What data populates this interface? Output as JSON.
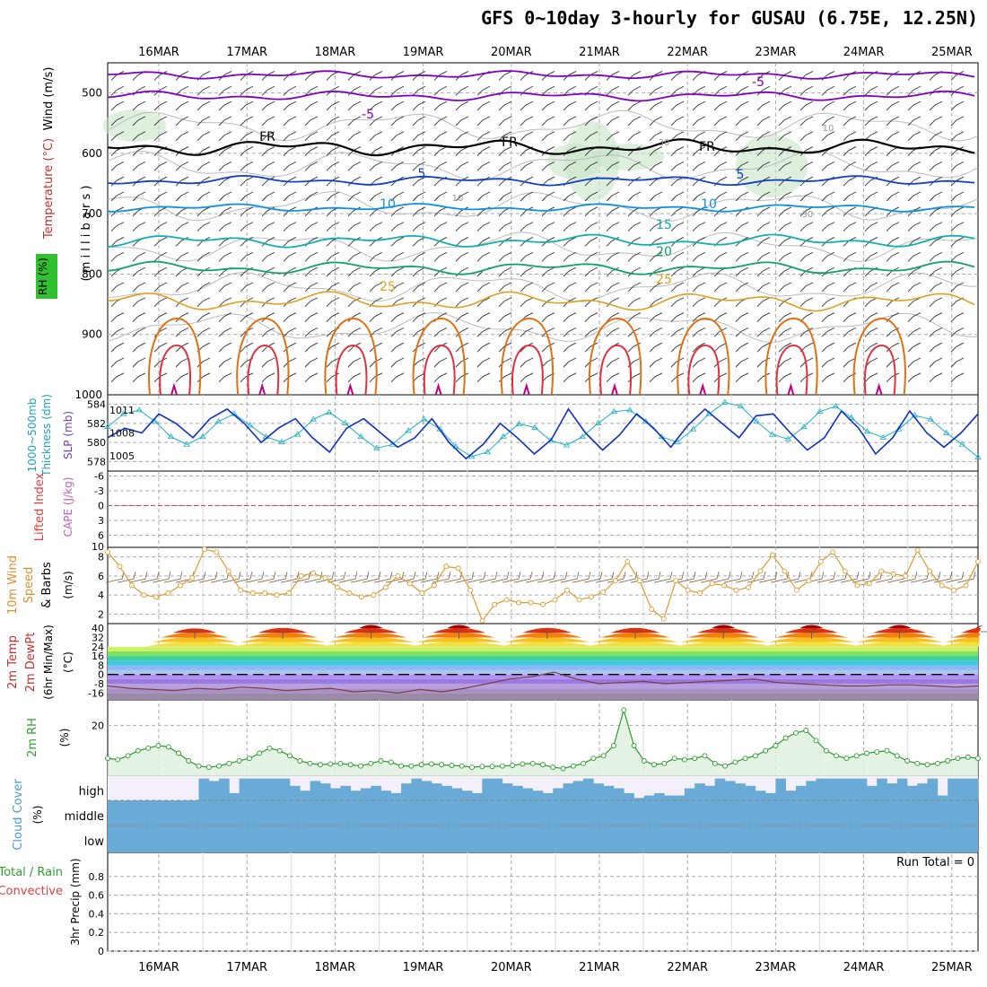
{
  "title": "GFS 0~10day 3-hourly for GUSAU (6.75E, 12.25N)",
  "dates": [
    "16MAR",
    "17MAR",
    "18MAR",
    "19MAR",
    "20MAR",
    "21MAR",
    "22MAR",
    "23MAR",
    "24MAR",
    "25MAR"
  ],
  "colors": {
    "t_minus5": "#8000c0",
    "t_fr": "#000000",
    "t_5": "#1040c8",
    "t_10": "#1090e0",
    "t_15": "#10b0b0",
    "t_20": "#10a070",
    "t_25": "#e0a020",
    "t_30": "#e07010",
    "t_35": "#e03040",
    "t_40": "#c00080",
    "rh": "#c8e4c8",
    "thick": "#1030c0",
    "slp": "#20b0c0",
    "wind10": "#e09a30",
    "rh2m": "#2a9a2a",
    "cloud": "#6aaad6"
  },
  "panels": {
    "upper": {
      "ylabel_wind": "Wind (m/s)",
      "ylabel_temp": "Temperature (°C)",
      "ylabel_rh": "RH (%)",
      "ylabel_unit": "( m i l l i b a r s )",
      "yticks": [
        "500",
        "600",
        "700",
        "800",
        "900",
        "1000"
      ]
    },
    "thick": {
      "ylabel_a": "1000~500mb",
      "ylabel_b": "Thickness (dm)",
      "ylabel_c": "SLP (mb)",
      "yticks_left": [
        "584",
        "582",
        "580",
        "578"
      ],
      "yticks_right": [
        "1011",
        "1008",
        "1005"
      ]
    },
    "lifted": {
      "ylabel_a": "Lifted Index",
      "ylabel_b": "CAPE (J/kg)",
      "yticks": [
        "-6",
        "-3",
        "0",
        "3",
        "6"
      ],
      "ytick_bottom": "10"
    },
    "wind": {
      "ylabel_a": "10m Wind",
      "ylabel_b": "Speed",
      "ylabel_c": "& Barbs",
      "ylabel_d": "(m/s)",
      "yticks": [
        "8",
        "6",
        "4",
        "2"
      ]
    },
    "temp": {
      "ylabel_a": "2m Temp",
      "ylabel_b": "2m DewPt",
      "ylabel_c": "(6hr Min/Max)",
      "ylabel_d": "(°C)",
      "yticks": [
        "40",
        "32",
        "24",
        "16",
        "8",
        "0",
        "-8",
        "-16"
      ]
    },
    "rh": {
      "ylabel_a": "2m RH",
      "ylabel_b": "(%)",
      "yticks": [
        "20"
      ]
    },
    "cloud": {
      "ylabel_a": "Cloud Cover",
      "ylabel_b": "(%)",
      "levels": [
        "high",
        "middle",
        "low"
      ]
    },
    "precip": {
      "ylabel_a": "Total / Rain",
      "ylabel_b": "Convective",
      "ylabel_c": "3hr Precip (mm)",
      "yticks": [
        "0.8",
        "0.6",
        "0.4",
        "0.2",
        "0"
      ],
      "run_total": "Run Total = 0"
    }
  },
  "contour_labels": [
    "-5",
    "-5",
    "FR",
    "FR",
    "FR",
    "5",
    "5",
    "10",
    "10",
    "15",
    "20",
    "25",
    "25",
    "30",
    "10",
    "10",
    "30"
  ],
  "chart_data": {
    "type": "line",
    "title": "GFS 0~10day 3-hourly for GUSAU (6.75E, 12.25N)",
    "x_dates": [
      "16MAR",
      "17MAR",
      "18MAR",
      "19MAR",
      "20MAR",
      "21MAR",
      "22MAR",
      "23MAR",
      "24MAR",
      "25MAR"
    ],
    "isotherm_levels_mb": {
      "-5": 505,
      "FR": 588,
      "5": 645,
      "10": 690,
      "15": 745,
      "20": 785,
      "25": 840
    },
    "thickness_dm": [
      580.5,
      581.5,
      581,
      583,
      582,
      580.5,
      582.5,
      583.5,
      582,
      580,
      581.5,
      582.5,
      580.5,
      579,
      581.5,
      582.5,
      581,
      579.5,
      580.5,
      582.5,
      580,
      578.3,
      579.8,
      582,
      580.5,
      578.8,
      580.3,
      583.5,
      581,
      579.2,
      580.8,
      583,
      581.5,
      579.5,
      581.8,
      583.5,
      582,
      580.5,
      582.8,
      583,
      581,
      579.2,
      580.5,
      583.3,
      581.5,
      578.8,
      580.5,
      583.3,
      581,
      579.5,
      581,
      583
    ],
    "slp_mb": [
      1008.8,
      1010.5,
      1011,
      1009.5,
      1007.5,
      1006.5,
      1007.5,
      1009.5,
      1010.5,
      1009,
      1007.5,
      1006.8,
      1007.8,
      1009.8,
      1010.7,
      1009.3,
      1007.5,
      1006,
      1006.5,
      1008.3,
      1009.8,
      1008.5,
      1006.2,
      1004.9,
      1005.5,
      1007.5,
      1009.2,
      1008.7,
      1007,
      1006.4,
      1007.5,
      1009.3,
      1010.8,
      1011,
      1009.5,
      1007.5,
      1006.8,
      1008.5,
      1010.5,
      1012,
      1011.5,
      1009.5,
      1007.8,
      1007.2,
      1008.8,
      1010.8,
      1011.5,
      1010,
      1008.2,
      1007.4,
      1008.5,
      1010.3,
      1009.8,
      1008,
      1006.5,
      1004.8
    ],
    "wind10_ms": [
      8.5,
      7,
      5,
      4,
      3.8,
      4.2,
      5,
      5.8,
      8.8,
      8.5,
      6.5,
      4.5,
      4.2,
      4.2,
      4,
      4.2,
      6,
      6.3,
      5.8,
      4.8,
      4.2,
      3.8,
      4,
      4.8,
      6,
      5.2,
      4.2,
      5,
      7,
      6.8,
      4.5,
      1.3,
      3,
      3.5,
      3.2,
      3.2,
      3,
      3.5,
      4.5,
      3.5,
      3.8,
      4.3,
      5.5,
      7.5,
      5.5,
      2.5,
      1.5,
      5.5,
      4.5,
      4.2,
      5.2,
      5,
      4.5,
      4.8,
      6.5,
      8.2,
      6.5,
      4.5,
      5.5,
      7.5,
      8.5,
      6.5,
      5,
      5.2,
      6.5,
      6.2,
      6,
      8.7,
      6.5,
      5,
      4.5,
      5,
      7.5
    ],
    "temp2m_max_c": [
      35,
      36,
      37,
      37,
      36,
      36,
      37,
      37,
      37,
      37
    ],
    "temp2m_min_c": [
      22,
      22,
      22,
      22,
      22,
      22,
      22,
      22,
      22,
      22
    ],
    "dewpt2m_c": [
      -10,
      -12,
      -13,
      -14,
      -12,
      -13,
      -11,
      -12,
      -14,
      -13,
      -12,
      -15,
      -14,
      -16,
      -13,
      -15,
      -12,
      -8,
      -4,
      -2,
      2,
      -4,
      -8,
      -7,
      -6,
      -8,
      -7,
      -6,
      -5,
      -4,
      -7,
      -8,
      -9,
      -10,
      -10,
      -9,
      -9,
      -10,
      -11,
      -10
    ],
    "rh2m_pct": [
      7,
      6.5,
      8,
      10,
      11,
      12,
      11.5,
      9,
      6,
      4,
      3.5,
      4,
      5,
      6,
      7,
      9,
      11,
      10,
      8,
      6,
      5,
      4.5,
      4.8,
      5,
      4.5,
      4,
      5,
      6,
      5.5,
      4,
      4,
      4.5,
      4.8,
      4.5,
      4.2,
      4,
      3.5,
      3.8,
      3.8,
      4,
      4.2,
      4.8,
      5,
      4.5,
      3.5,
      3,
      4,
      5,
      7,
      8,
      12,
      26,
      12,
      6,
      4.5,
      5,
      7,
      6.5,
      7,
      8,
      5,
      4,
      5.5,
      7,
      8,
      10,
      12,
      15,
      17,
      18,
      14,
      10,
      8,
      7,
      8,
      9,
      9.5,
      10,
      8,
      6,
      5,
      4.5,
      5,
      6,
      7,
      7.5,
      7
    ],
    "cloud_high_pct": [
      0,
      0,
      0,
      0,
      0,
      0,
      0,
      0,
      0,
      90,
      80,
      90,
      30,
      90,
      90,
      90,
      90,
      90,
      60,
      40,
      80,
      70,
      50,
      60,
      40,
      50,
      60,
      40,
      30,
      70,
      90,
      80,
      70,
      60,
      50,
      40,
      30,
      90,
      90,
      70,
      60,
      50,
      40,
      30,
      50,
      70,
      80,
      90,
      70,
      60,
      50,
      30,
      10,
      20,
      30,
      20,
      20,
      50,
      70,
      60,
      90,
      80,
      70,
      60,
      40,
      30,
      90,
      40,
      60,
      80,
      90,
      90,
      90,
      90,
      90,
      60,
      90,
      70,
      90,
      60,
      70,
      90,
      20,
      90,
      90,
      90
    ],
    "cloud_mid_pct": 100,
    "cloud_low_pct": 100,
    "precip_run_total_mm": 0,
    "ylim_upper_mb": [
      1000,
      450
    ],
    "ylim_thickness_dm": [
      577,
      585
    ],
    "ylim_slp_mb": [
      1003,
      1013
    ],
    "ylim_wind_ms": [
      1,
      9
    ],
    "ylim_temp_c": [
      -22,
      44
    ],
    "ylim_rh_pct": [
      0,
      30
    ],
    "ylim_precip_mm": [
      0,
      1
    ]
  }
}
